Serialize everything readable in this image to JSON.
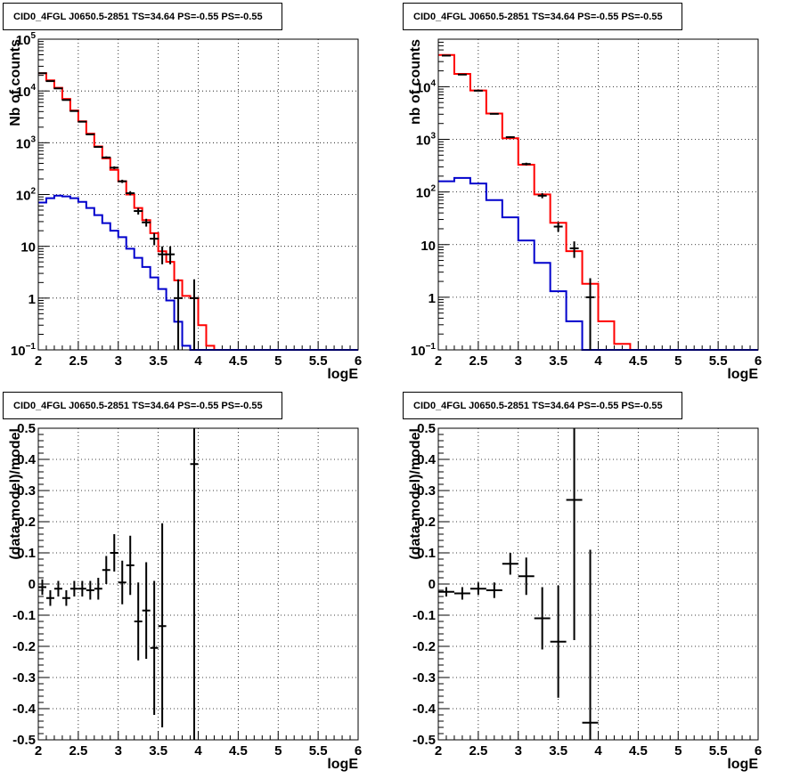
{
  "colors": {
    "total": "#ff0000",
    "source": "#0000cc",
    "data": "#000000"
  },
  "panels": [
    {
      "title": "CID0_4FGL J0650.5-2851 TS=34.64 PS=-0.55 PS=-0.55",
      "xlabel": "logE",
      "ylabel": "Nb of counts"
    },
    {
      "title": "CID0_4FGL J0650.5-2851 TS=34.64 PS=-0.55 PS=-0.55",
      "xlabel": "logE",
      "ylabel": "nb of counts"
    },
    {
      "title": "CID0_4FGL J0650.5-2851 TS=34.64 PS=-0.55 PS=-0.55",
      "xlabel": "logE",
      "ylabel": "(data-model)/model"
    },
    {
      "title": "CID0_4FGL J0650.5-2851 TS=34.64 PS=-0.55 PS=-0.55",
      "xlabel": "logE",
      "ylabel": "(data-model)/model"
    }
  ],
  "chart_data": [
    {
      "type": "line",
      "title": "CID0_4FGL J0650.5-2851 TS=34.64 PS=-0.55 PS=-0.55",
      "xlabel": "logE",
      "ylabel": "Nb of counts",
      "xlim": [
        2,
        6
      ],
      "ylim": [
        0.1,
        100000
      ],
      "ylog": true,
      "grid": true,
      "xticks": [
        "2",
        "2.5",
        "3",
        "3.5",
        "4",
        "4.5",
        "5",
        "5.5",
        "6"
      ],
      "yticks": [
        {
          "v": 0.1,
          "b": "10",
          "e": "−1"
        },
        {
          "v": 1,
          "b": "1",
          "e": ""
        },
        {
          "v": 10,
          "b": "10",
          "e": ""
        },
        {
          "v": 100,
          "b": "10",
          "e": "2"
        },
        {
          "v": 1000,
          "b": "10",
          "e": "3"
        },
        {
          "v": 10000,
          "b": "10",
          "e": "4"
        },
        {
          "v": 100000,
          "b": "10",
          "e": "5"
        }
      ],
      "bin_edges": [
        2,
        2.1,
        2.2,
        2.3,
        2.4,
        2.5,
        2.6,
        2.7,
        2.8,
        2.9,
        3,
        3.1,
        3.2,
        3.3,
        3.4,
        3.5,
        3.6,
        3.7,
        3.8,
        3.9,
        4,
        4.1,
        4.2,
        4.3,
        4.4,
        4.5,
        4.6,
        4.7,
        4.8,
        4.9,
        5,
        5.1,
        5.2,
        5.3,
        5.4,
        5.5,
        5.6,
        5.7,
        5.8,
        5.9,
        6
      ],
      "series": [
        {
          "style": "step",
          "color": "#ff0000",
          "values": [
            22000,
            16000,
            11500,
            7000,
            4200,
            2600,
            1500,
            850,
            500,
            300,
            180,
            100,
            55,
            32,
            18,
            8,
            5,
            2.2,
            1.1,
            1.0,
            0.3,
            0.12,
            0.1,
            0.1,
            0.1,
            0.1,
            0.1,
            0.1,
            0.1,
            0.1,
            0.1,
            0.1,
            0.1,
            0.1,
            0.1,
            0.1,
            0.1,
            0.1,
            0.1,
            0.1
          ]
        },
        {
          "style": "step",
          "color": "#0000cc",
          "values": [
            70,
            85,
            95,
            92,
            85,
            72,
            55,
            40,
            28,
            20,
            15,
            9,
            6,
            4,
            2.5,
            1.5,
            0.9,
            0.35,
            0.12,
            0.1,
            0.1,
            0.1,
            0.1,
            0.1,
            0.1,
            0.1,
            0.1,
            0.1,
            0.1,
            0.1,
            0.1,
            0.1,
            0.1,
            0.1,
            0.1,
            0.1,
            0.1,
            0.1,
            0.1,
            0.1
          ]
        },
        {
          "style": "points",
          "color": "#000000",
          "points": [
            {
              "x": 2.05,
              "y": 22000,
              "lo": 21700,
              "hi": 22300
            },
            {
              "x": 2.15,
              "y": 15500,
              "lo": 15250,
              "hi": 15750
            },
            {
              "x": 2.25,
              "y": 11200,
              "lo": 11000,
              "hi": 11400
            },
            {
              "x": 2.35,
              "y": 6700,
              "lo": 6550,
              "hi": 6850
            },
            {
              "x": 2.45,
              "y": 4100,
              "lo": 4000,
              "hi": 4200
            },
            {
              "x": 2.55,
              "y": 2550,
              "lo": 2480,
              "hi": 2620
            },
            {
              "x": 2.65,
              "y": 1450,
              "lo": 1400,
              "hi": 1500
            },
            {
              "x": 2.75,
              "y": 830,
              "lo": 800,
              "hi": 860
            },
            {
              "x": 2.85,
              "y": 520,
              "lo": 495,
              "hi": 545
            },
            {
              "x": 2.95,
              "y": 330,
              "lo": 310,
              "hi": 350
            },
            {
              "x": 3.05,
              "y": 180,
              "lo": 167,
              "hi": 193
            },
            {
              "x": 3.15,
              "y": 106,
              "lo": 96,
              "hi": 116
            },
            {
              "x": 3.25,
              "y": 48,
              "lo": 41,
              "hi": 55
            },
            {
              "x": 3.35,
              "y": 29,
              "lo": 24,
              "hi": 34
            },
            {
              "x": 3.45,
              "y": 14,
              "lo": 10.5,
              "hi": 18
            },
            {
              "x": 3.55,
              "y": 7,
              "lo": 4.5,
              "hi": 10
            },
            {
              "x": 3.65,
              "y": 7,
              "lo": 4.5,
              "hi": 10
            },
            {
              "x": 3.75,
              "y": 1,
              "lo": 0.1,
              "hi": 2.3
            },
            {
              "x": 3.95,
              "y": 1,
              "lo": 0.1,
              "hi": 2.3
            }
          ]
        }
      ]
    },
    {
      "type": "line",
      "title": "CID0_4FGL J0650.5-2851 TS=34.64 PS=-0.55 PS=-0.55",
      "xlabel": "logE",
      "ylabel": "nb of counts",
      "xlim": [
        2,
        6
      ],
      "ylim": [
        0.1,
        80000
      ],
      "ylog": true,
      "grid": true,
      "xticks": [
        "2",
        "2.5",
        "3",
        "3.5",
        "4",
        "4.5",
        "5",
        "5.5",
        "6"
      ],
      "yticks": [
        {
          "v": 0.1,
          "b": "10",
          "e": "−1"
        },
        {
          "v": 1,
          "b": "1",
          "e": ""
        },
        {
          "v": 10,
          "b": "10",
          "e": ""
        },
        {
          "v": 100,
          "b": "10",
          "e": "2"
        },
        {
          "v": 1000,
          "b": "10",
          "e": "3"
        },
        {
          "v": 10000,
          "b": "10",
          "e": "4"
        }
      ],
      "bin_edges": [
        2,
        2.2,
        2.4,
        2.6,
        2.8,
        3,
        3.2,
        3.4,
        3.6,
        3.8,
        4,
        4.2,
        4.4,
        4.6,
        4.8,
        5,
        5.2,
        5.4,
        5.6,
        5.8,
        6
      ],
      "series": [
        {
          "style": "step",
          "color": "#ff0000",
          "values": [
            40000,
            17500,
            8500,
            3100,
            1050,
            330,
            90,
            26,
            7.5,
            1.8,
            0.35,
            0.13,
            0.1,
            0.1,
            0.1,
            0.1,
            0.1,
            0.1,
            0.1,
            0.1
          ]
        },
        {
          "style": "step",
          "color": "#0000cc",
          "values": [
            160,
            185,
            145,
            70,
            33,
            12,
            4.5,
            1.3,
            0.35,
            0.1,
            0.1,
            0.1,
            0.1,
            0.1,
            0.1,
            0.1,
            0.1,
            0.1,
            0.1,
            0.1
          ]
        },
        {
          "style": "points",
          "color": "#000000",
          "points": [
            {
              "x": 2.1,
              "y": 39000,
              "lo": 38600,
              "hi": 39400
            },
            {
              "x": 2.3,
              "y": 17000,
              "lo": 16800,
              "hi": 17200
            },
            {
              "x": 2.5,
              "y": 8400,
              "lo": 8250,
              "hi": 8550
            },
            {
              "x": 2.7,
              "y": 3050,
              "lo": 2980,
              "hi": 3120
            },
            {
              "x": 2.9,
              "y": 1100,
              "lo": 1060,
              "hi": 1140
            },
            {
              "x": 3.1,
              "y": 340,
              "lo": 320,
              "hi": 360
            },
            {
              "x": 3.3,
              "y": 85,
              "lo": 76,
              "hi": 95
            },
            {
              "x": 3.5,
              "y": 22,
              "lo": 17.5,
              "hi": 26.5
            },
            {
              "x": 3.7,
              "y": 8.5,
              "lo": 5.6,
              "hi": 11.5
            },
            {
              "x": 3.9,
              "y": 1,
              "lo": 0.1,
              "hi": 2.3
            }
          ]
        }
      ]
    },
    {
      "type": "scatter",
      "title": "CID0_4FGL J0650.5-2851 TS=34.64 PS=-0.55 PS=-0.55",
      "xlabel": "logE",
      "ylabel": "(data-model)/model",
      "xlim": [
        2,
        6
      ],
      "ylim": [
        -0.5,
        0.5
      ],
      "ylog": false,
      "grid": true,
      "xticks": [
        "2",
        "2.5",
        "3",
        "3.5",
        "4",
        "4.5",
        "5",
        "5.5",
        "6"
      ],
      "yticks": [
        "-0.5",
        "-0.4",
        "-0.3",
        "-0.2",
        "-0.1",
        "0",
        "0.1",
        "0.2",
        "0.3",
        "0.4",
        "0.5"
      ],
      "series": [
        {
          "style": "errorbars",
          "color": "#000000",
          "points": [
            {
              "x": 2.05,
              "y": -0.01,
              "lo": -0.035,
              "hi": 0.015,
              "hw": 0.05
            },
            {
              "x": 2.15,
              "y": -0.045,
              "lo": -0.07,
              "hi": -0.02,
              "hw": 0.05
            },
            {
              "x": 2.25,
              "y": -0.015,
              "lo": -0.04,
              "hi": 0.01,
              "hw": 0.05
            },
            {
              "x": 2.35,
              "y": -0.045,
              "lo": -0.07,
              "hi": -0.02,
              "hw": 0.05
            },
            {
              "x": 2.45,
              "y": -0.015,
              "lo": -0.04,
              "hi": 0.01,
              "hw": 0.05
            },
            {
              "x": 2.55,
              "y": -0.015,
              "lo": -0.04,
              "hi": 0.01,
              "hw": 0.05
            },
            {
              "x": 2.65,
              "y": -0.02,
              "lo": -0.05,
              "hi": 0.01,
              "hw": 0.05
            },
            {
              "x": 2.75,
              "y": -0.015,
              "lo": -0.05,
              "hi": 0.02,
              "hw": 0.05
            },
            {
              "x": 2.85,
              "y": 0.045,
              "lo": 0.0,
              "hi": 0.09,
              "hw": 0.05
            },
            {
              "x": 2.95,
              "y": 0.1,
              "lo": 0.04,
              "hi": 0.16,
              "hw": 0.05
            },
            {
              "x": 3.05,
              "y": 0.005,
              "lo": -0.065,
              "hi": 0.075,
              "hw": 0.05
            },
            {
              "x": 3.15,
              "y": 0.06,
              "lo": -0.035,
              "hi": 0.155,
              "hw": 0.05
            },
            {
              "x": 3.25,
              "y": -0.12,
              "lo": -0.245,
              "hi": 0.005,
              "hw": 0.05
            },
            {
              "x": 3.35,
              "y": -0.085,
              "lo": -0.24,
              "hi": 0.07,
              "hw": 0.05
            },
            {
              "x": 3.45,
              "y": -0.205,
              "lo": -0.42,
              "hi": 0.01,
              "hw": 0.05
            },
            {
              "x": 3.55,
              "y": -0.135,
              "lo": -0.46,
              "hi": 0.195,
              "hw": 0.05
            },
            {
              "x": 3.95,
              "y": 0.385,
              "lo": -0.5,
              "hi": 0.5,
              "hw": 0.05
            }
          ]
        }
      ]
    },
    {
      "type": "scatter",
      "title": "CID0_4FGL J0650.5-2851 TS=34.64 PS=-0.55 PS=-0.55",
      "xlabel": "logE",
      "ylabel": "(data-model)/model",
      "xlim": [
        2,
        6
      ],
      "ylim": [
        -0.5,
        0.5
      ],
      "ylog": false,
      "grid": true,
      "xticks": [
        "2",
        "2.5",
        "3",
        "3.5",
        "4",
        "4.5",
        "5",
        "5.5",
        "6"
      ],
      "yticks": [
        "-0.5",
        "-0.4",
        "-0.3",
        "-0.2",
        "-0.1",
        "0",
        "0.1",
        "0.2",
        "0.3",
        "0.4",
        "0.5"
      ],
      "series": [
        {
          "style": "errorbars",
          "color": "#000000",
          "points": [
            {
              "x": 2.1,
              "y": -0.025,
              "lo": -0.04,
              "hi": -0.01,
              "hw": 0.1
            },
            {
              "x": 2.3,
              "y": -0.03,
              "lo": -0.05,
              "hi": -0.01,
              "hw": 0.1
            },
            {
              "x": 2.5,
              "y": -0.015,
              "lo": -0.035,
              "hi": 0.005,
              "hw": 0.1
            },
            {
              "x": 2.7,
              "y": -0.02,
              "lo": -0.045,
              "hi": 0.005,
              "hw": 0.1
            },
            {
              "x": 2.9,
              "y": 0.065,
              "lo": 0.03,
              "hi": 0.1,
              "hw": 0.1
            },
            {
              "x": 3.1,
              "y": 0.025,
              "lo": -0.035,
              "hi": 0.085,
              "hw": 0.1
            },
            {
              "x": 3.3,
              "y": -0.11,
              "lo": -0.21,
              "hi": -0.01,
              "hw": 0.1
            },
            {
              "x": 3.5,
              "y": -0.185,
              "lo": -0.365,
              "hi": -0.005,
              "hw": 0.1
            },
            {
              "x": 3.7,
              "y": 0.27,
              "lo": -0.18,
              "hi": 0.5,
              "hw": 0.1
            },
            {
              "x": 3.9,
              "y": -0.445,
              "lo": -0.5,
              "hi": 0.11,
              "hw": 0.1
            }
          ]
        }
      ]
    }
  ]
}
